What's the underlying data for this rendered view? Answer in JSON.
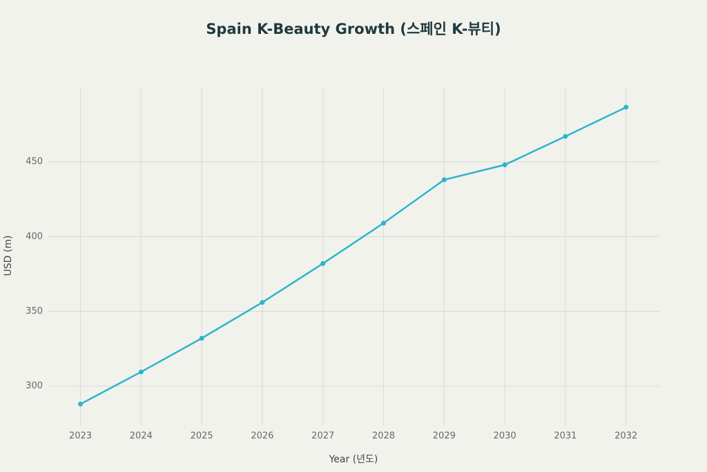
{
  "chart_data": {
    "type": "line",
    "title": "Spain K-Beauty Growth (스페인 K-뷰티)",
    "x_label": "Year (년도)",
    "y_label": "USD (m)",
    "x": [
      2023,
      2024,
      2025,
      2026,
      2027,
      2028,
      2029,
      2030,
      2031,
      2032
    ],
    "series": [
      {
        "name": "Spain",
        "color": "#2ab5c9",
        "values": [
          288,
          309.5,
          332,
          356,
          382,
          409,
          438,
          448,
          467,
          486.5
        ]
      }
    ],
    "xlim": [
      2022.47,
      2032.55
    ],
    "xticks": [
      2023,
      2024,
      2025,
      2026,
      2027,
      2028,
      2029,
      2030,
      2031,
      2032
    ],
    "ylim": [
      274,
      500
    ],
    "yticks": [
      300,
      350,
      400,
      450
    ],
    "grid": true
  }
}
